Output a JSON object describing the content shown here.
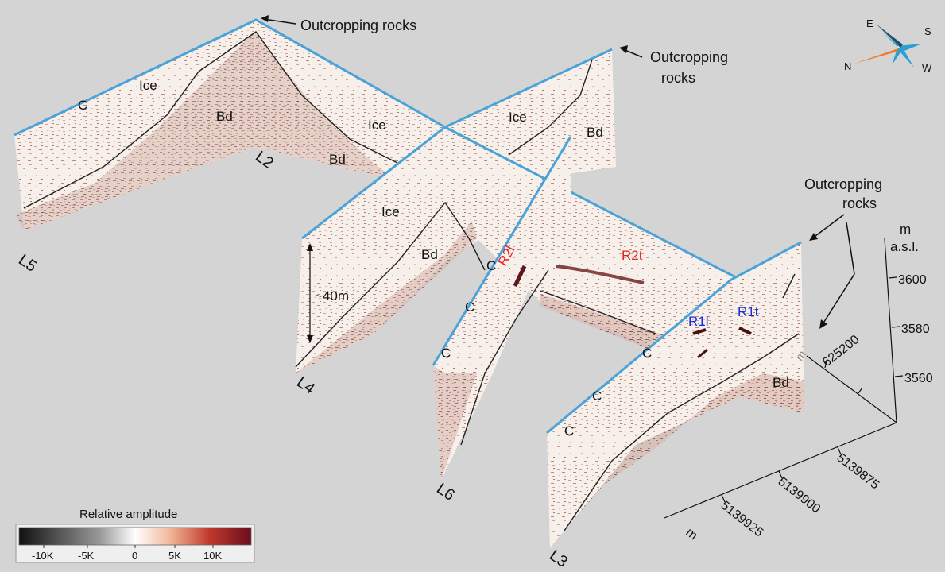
{
  "annotations": {
    "outcrop_top": "Outcropping rocks",
    "outcrop_right_l1": "Outcropping",
    "outcrop_right_l2": "rocks",
    "outcrop_far_l1": "Outcropping",
    "outcrop_far_l2": "rocks",
    "thickness": "~40m"
  },
  "profile_lines": [
    "L5",
    "L2",
    "L4",
    "L6",
    "L3"
  ],
  "units": {
    "ice": "Ice",
    "bedrock": "Bd",
    "crevasse": "C"
  },
  "reflectors": {
    "r2l": {
      "text": "R2l",
      "color": "#e8201e"
    },
    "r2t": {
      "text": "R2t",
      "color": "#e8201e"
    },
    "r1l": {
      "text": "R1l",
      "color": "#1a2bd8"
    },
    "r1t": {
      "text": "R1t",
      "color": "#1a2bd8"
    }
  },
  "compass": {
    "E": "E",
    "S": "S",
    "N": "N",
    "W": "W",
    "arrow_color": "#f07a2a",
    "needle_color": "#2a9fd6"
  },
  "axes": {
    "elev_unit_l1": "m",
    "elev_unit_l2": "a.s.l.",
    "elev_ticks": [
      "3600",
      "3580",
      "3560"
    ],
    "east_tick": "625200",
    "east_unit": "m",
    "north_ticks": [
      "5139875",
      "5139900",
      "5139925"
    ],
    "north_unit": "m"
  },
  "colorbar": {
    "title": "Relative amplitude",
    "ticks": [
      "-10K",
      "-5K",
      "0",
      "5K",
      "10K"
    ]
  },
  "colors": {
    "surface_line": "#4aa3d8",
    "background": "#d4d4d4"
  }
}
